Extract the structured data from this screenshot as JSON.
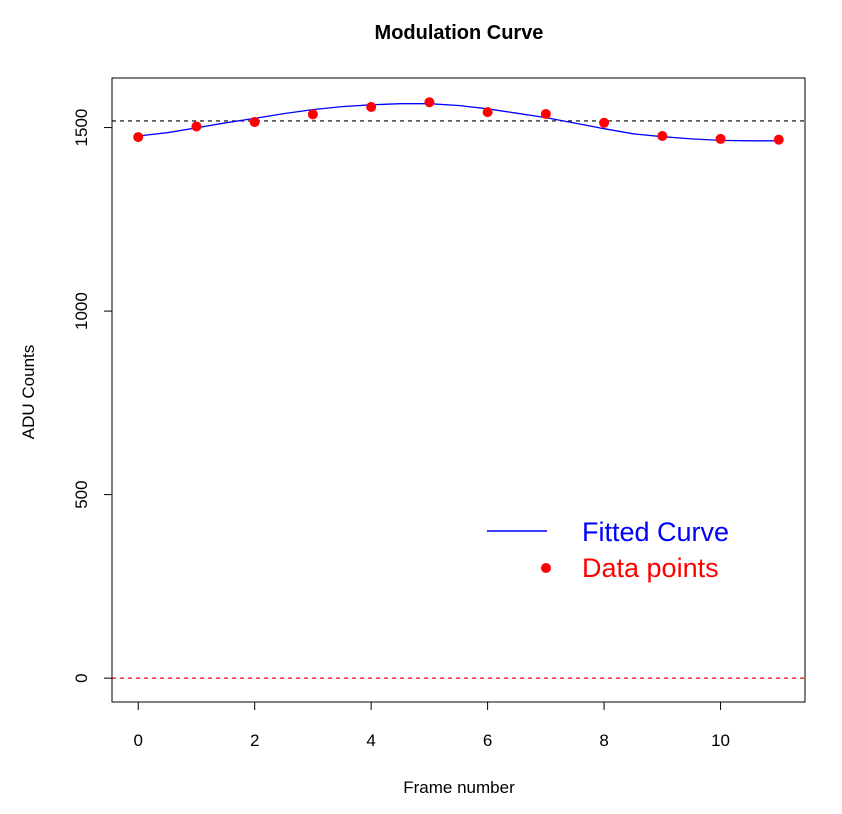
{
  "chart_data": {
    "type": "scatter",
    "title": "Modulation Curve",
    "xlabel": "Frame number",
    "ylabel": "ADU Counts",
    "xlim": [
      -0.45,
      11.45
    ],
    "ylim": [
      -65,
      1635
    ],
    "x_ticks": [
      0,
      2,
      4,
      6,
      8,
      10
    ],
    "y_ticks": [
      0,
      500,
      1000,
      1500
    ],
    "grid": false,
    "legend_position": "center-right",
    "series": [
      {
        "name": "Fitted Curve",
        "kind": "line",
        "color": "#0000ff",
        "x": [
          0,
          0.5,
          1,
          1.5,
          2,
          2.5,
          3,
          3.5,
          4,
          4.5,
          5,
          5.5,
          6,
          6.5,
          7,
          7.5,
          8,
          8.5,
          9,
          9.5,
          10,
          10.5,
          11
        ],
        "y": [
          1477,
          1486,
          1499,
          1513,
          1525,
          1538,
          1549,
          1557,
          1562,
          1565,
          1565,
          1560,
          1551,
          1539,
          1527,
          1512,
          1497,
          1483,
          1475,
          1469,
          1465,
          1464,
          1464
        ]
      },
      {
        "name": "Data points",
        "kind": "points",
        "color": "#ff0000",
        "x": [
          0,
          1,
          2,
          3,
          4,
          5,
          6,
          7,
          8,
          9,
          10,
          11
        ],
        "y": [
          1474,
          1503,
          1515,
          1536,
          1556,
          1569,
          1542,
          1537,
          1513,
          1477,
          1469,
          1467
        ]
      }
    ],
    "reference_lines": [
      {
        "axis": "y",
        "value": 1518,
        "color": "#000000",
        "style": "dashed"
      },
      {
        "axis": "y",
        "value": 0,
        "color": "#ff0000",
        "style": "dashed"
      }
    ]
  }
}
